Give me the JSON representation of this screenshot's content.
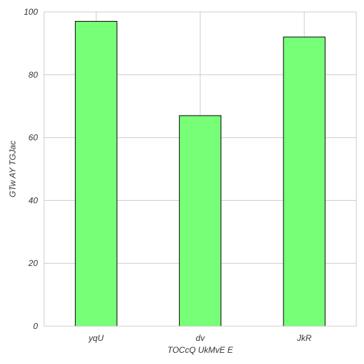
{
  "chart_data": {
    "type": "bar",
    "categories": [
      "yqU",
      "dv",
      "JkR"
    ],
    "values": [
      97,
      67,
      92
    ],
    "title": "",
    "xlabel": "TOCcQ UkMvE E",
    "ylabel": "GTw AY  TGJac",
    "ylim": [
      0,
      100
    ],
    "yticks": [
      0,
      20,
      40,
      60,
      80,
      100
    ],
    "grid": true,
    "bar_color": "#77ff77",
    "edge_color": "#000000"
  }
}
